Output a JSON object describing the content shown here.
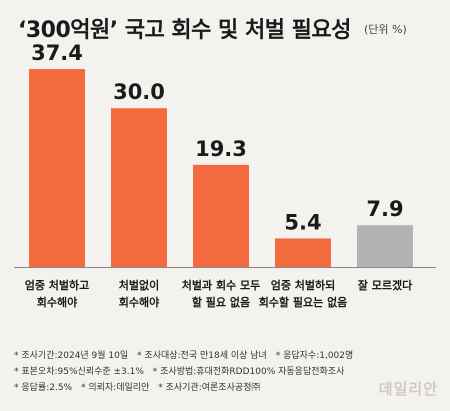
{
  "title": "‘300억원’ 국고 회수 및 처벌 필요성",
  "unit": "(단위 %)",
  "chart_data": {
    "type": "bar",
    "categories": [
      [
        "엄중 처벌하고",
        "회수해야"
      ],
      [
        "처벌없이",
        "회수해야"
      ],
      [
        "처벌과 회수 모두",
        "할 필요 없음"
      ],
      [
        "엄중 처벌하되",
        "회수할 필요는 없음"
      ],
      [
        "잘 모르겠다"
      ]
    ],
    "values": [
      37.4,
      30.0,
      19.3,
      5.4,
      7.9
    ],
    "value_labels": [
      "37.4",
      "30.0",
      "19.3",
      "5.4",
      "7.9"
    ],
    "ylim": [
      0,
      40
    ],
    "grid": false,
    "colors": [
      "#f26a3d",
      "#f26a3d",
      "#f26a3d",
      "#f26a3d",
      "#b3b3b3"
    ],
    "axis_color": "#888888"
  },
  "notes": [
    [
      "* 조사기간:2024년 9월 10일",
      "* 조사대상:전국 만18세 이상 남녀",
      "* 응답자수:1,002명"
    ],
    [
      "* 표본오차:95%신뢰수준 ±3.1%",
      "* 조사방법:휴대전화RDD100% 자동응답전화조사"
    ],
    [
      "* 응답률:2.5%",
      "* 의뢰자:데일리안",
      "* 조사기관:여론조사공정㈜"
    ]
  ],
  "logo": "데일리안"
}
